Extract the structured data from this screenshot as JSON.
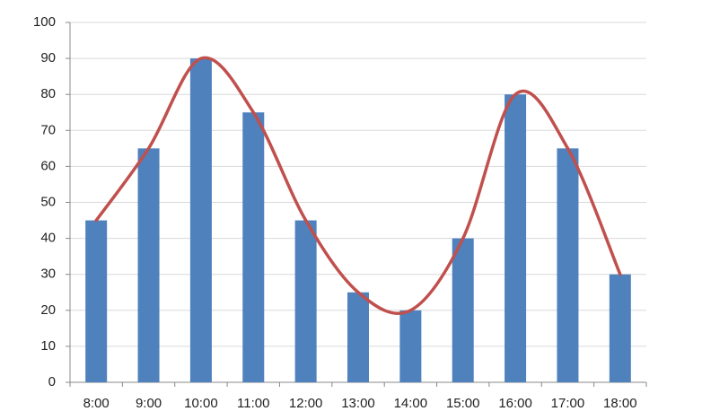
{
  "chart_data": {
    "type": "bar",
    "categories": [
      "8:00",
      "9:00",
      "10:00",
      "11:00",
      "12:00",
      "13:00",
      "14:00",
      "15:00",
      "16:00",
      "17:00",
      "18:00"
    ],
    "series": [
      {
        "type": "bar",
        "color": "#4f81bd",
        "values": [
          45,
          65,
          90,
          75,
          45,
          25,
          20,
          40,
          80,
          65,
          30
        ]
      },
      {
        "type": "line",
        "smooth": true,
        "color": "#c0504d",
        "values": [
          45,
          65,
          90,
          75,
          45,
          25,
          20,
          40,
          80,
          65,
          30
        ]
      }
    ],
    "ylim": [
      0,
      100
    ],
    "yticks": [
      0,
      10,
      20,
      30,
      40,
      50,
      60,
      70,
      80,
      90,
      100
    ],
    "grid": true
  }
}
